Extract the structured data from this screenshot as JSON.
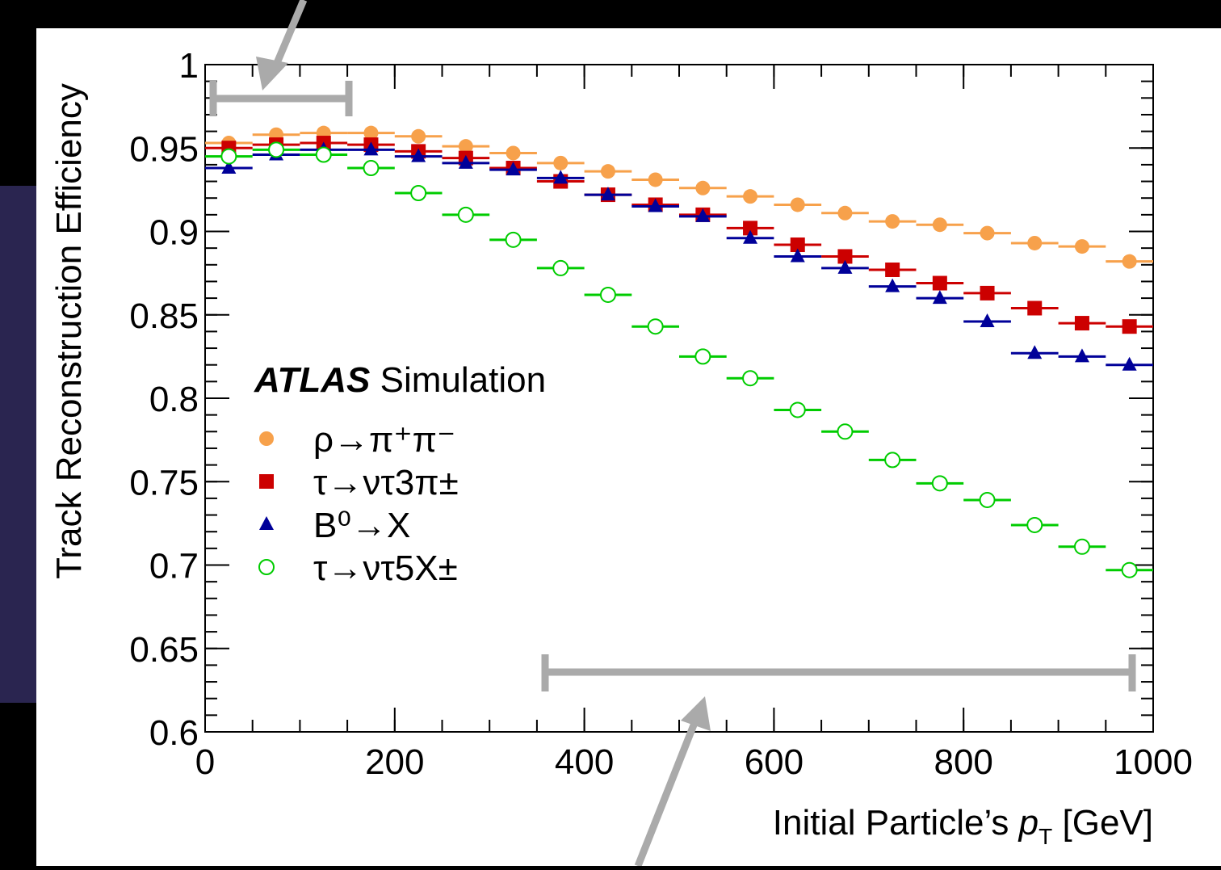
{
  "chart_data": {
    "type": "scatter",
    "ylabel": "Track Reconstruction Efficiency",
    "xlabel": {
      "text": "Initial Particle’s",
      "var": "p",
      "sub": "T",
      "unit": "[GeV]"
    },
    "annotation": {
      "label": "ATLAS",
      "text": "Simulation"
    },
    "x": [
      25,
      75,
      125,
      175,
      225,
      275,
      325,
      375,
      425,
      475,
      525,
      575,
      625,
      675,
      725,
      775,
      825,
      875,
      925,
      975
    ],
    "x_error": 25,
    "xlim": [
      0,
      1000
    ],
    "xticks": [
      0,
      200,
      400,
      600,
      800,
      1000
    ],
    "ylim": [
      0.6,
      1
    ],
    "yticks": [
      0.6,
      0.65,
      0.7,
      0.75,
      0.8,
      0.85,
      0.9,
      0.95,
      1
    ],
    "series": [
      {
        "name": "ρ→π⁺π⁻",
        "color": "#f7a14b",
        "marker": "circle",
        "values": [
          0.953,
          0.958,
          0.959,
          0.959,
          0.957,
          0.951,
          0.947,
          0.941,
          0.936,
          0.931,
          0.926,
          0.921,
          0.916,
          0.911,
          0.906,
          0.904,
          0.899,
          0.893,
          0.891,
          0.882
        ]
      },
      {
        "name": "τ→ντ3π±",
        "color": "#cc0000",
        "marker": "square",
        "values": [
          0.95,
          0.952,
          0.953,
          0.952,
          0.948,
          0.944,
          0.938,
          0.93,
          0.922,
          0.916,
          0.91,
          0.902,
          0.892,
          0.885,
          0.877,
          0.869,
          0.863,
          0.854,
          0.845,
          0.843
        ]
      },
      {
        "name": "B⁰→X",
        "color": "#000099",
        "marker": "triangle",
        "values": [
          0.938,
          0.946,
          0.949,
          0.949,
          0.945,
          0.941,
          0.937,
          0.932,
          0.922,
          0.915,
          0.909,
          0.896,
          0.885,
          0.878,
          0.867,
          0.86,
          0.846,
          0.827,
          0.825,
          0.82
        ]
      },
      {
        "name": "τ→ντ5X±",
        "color": "#00cc00",
        "marker": "open-circle",
        "values": [
          0.945,
          0.949,
          0.946,
          0.938,
          0.923,
          0.91,
          0.895,
          0.878,
          0.862,
          0.843,
          0.825,
          0.812,
          0.793,
          0.78,
          0.763,
          0.749,
          0.739,
          0.724,
          0.711,
          0.697
        ]
      }
    ]
  }
}
